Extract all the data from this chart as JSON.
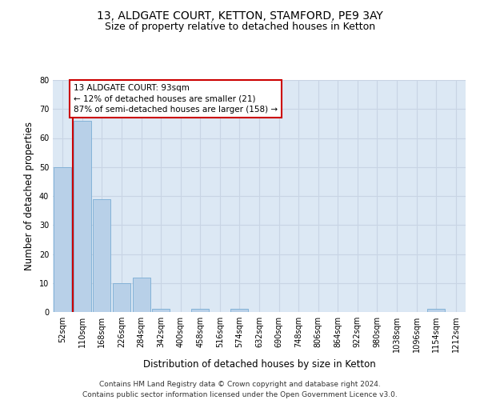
{
  "title": "13, ALDGATE COURT, KETTON, STAMFORD, PE9 3AY",
  "subtitle": "Size of property relative to detached houses in Ketton",
  "xlabel": "Distribution of detached houses by size in Ketton",
  "ylabel": "Number of detached properties",
  "categories": [
    "52sqm",
    "110sqm",
    "168sqm",
    "226sqm",
    "284sqm",
    "342sqm",
    "400sqm",
    "458sqm",
    "516sqm",
    "574sqm",
    "632sqm",
    "690sqm",
    "748sqm",
    "806sqm",
    "864sqm",
    "922sqm",
    "980sqm",
    "1038sqm",
    "1096sqm",
    "1154sqm",
    "1212sqm"
  ],
  "values": [
    50,
    66,
    39,
    10,
    12,
    1,
    0,
    1,
    0,
    1,
    0,
    0,
    0,
    0,
    0,
    0,
    0,
    0,
    0,
    1,
    0
  ],
  "bar_color": "#b8d0e8",
  "bar_edge_color": "#7aadd4",
  "annotation_text": "13 ALDGATE COURT: 93sqm\n← 12% of detached houses are smaller (21)\n87% of semi-detached houses are larger (158) →",
  "annotation_box_color": "#ffffff",
  "annotation_box_edge": "#cc0000",
  "vline_color": "#cc0000",
  "vline_x": 0.5,
  "ylim": [
    0,
    80
  ],
  "yticks": [
    0,
    10,
    20,
    30,
    40,
    50,
    60,
    70,
    80
  ],
  "grid_color": "#c8d4e4",
  "background_color": "#dce8f4",
  "footer": "Contains HM Land Registry data © Crown copyright and database right 2024.\nContains public sector information licensed under the Open Government Licence v3.0.",
  "title_fontsize": 10,
  "subtitle_fontsize": 9,
  "axis_label_fontsize": 8.5,
  "tick_fontsize": 7,
  "annotation_fontsize": 7.5,
  "footer_fontsize": 6.5
}
